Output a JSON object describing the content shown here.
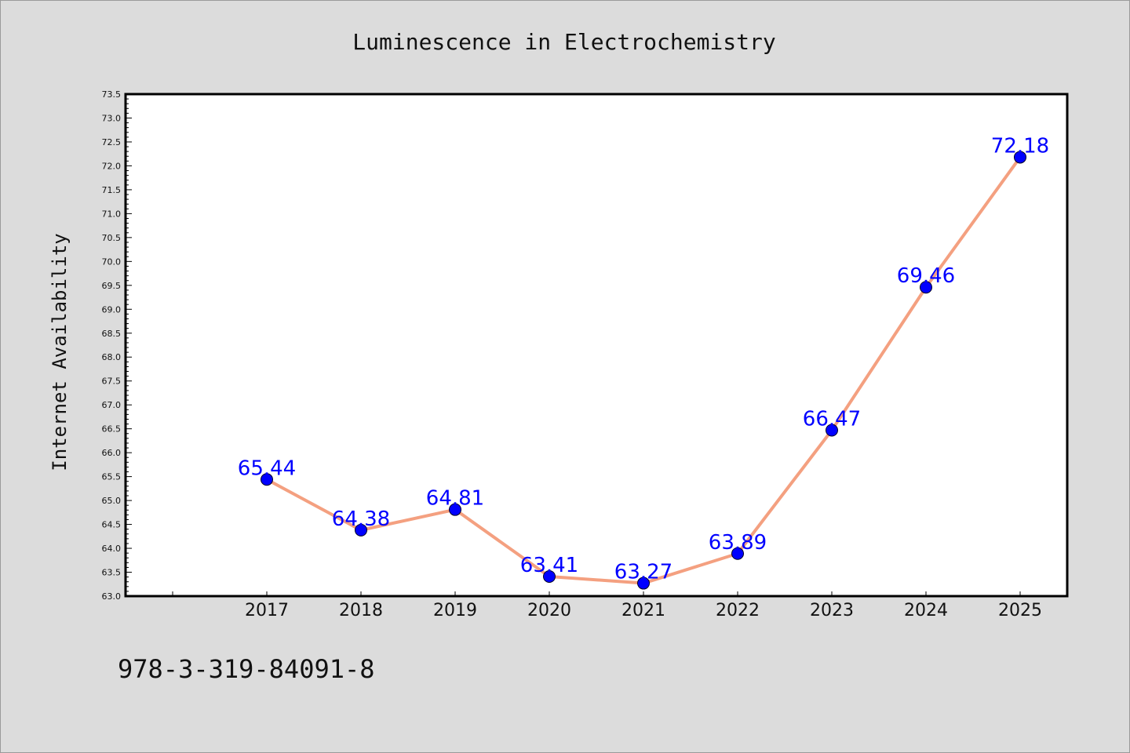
{
  "chart_data": {
    "type": "line",
    "title": "Luminescence in Electrochemistry",
    "xlabel": "",
    "ylabel": "Internet Availability",
    "categories": [
      "2017",
      "2018",
      "2019",
      "2020",
      "2021",
      "2022",
      "2023",
      "2024",
      "2025"
    ],
    "values": [
      65.44,
      64.38,
      64.81,
      63.41,
      63.27,
      63.89,
      66.47,
      69.46,
      72.18
    ],
    "data_labels": [
      "65.44",
      "64.38",
      "64.81",
      "63.41",
      "63.27",
      "63.89",
      "66.47",
      "69.46",
      "72.18"
    ],
    "ylim": [
      63.0,
      73.5
    ],
    "y_major_step": 0.5,
    "grid": false,
    "legend": "none",
    "line_color": "#f4a080",
    "marker_color": "#0000ff",
    "label_color": "#0000ff",
    "plot_background": "#ffffff",
    "page_background": "#dcdcdc"
  },
  "footnote": "978-3-319-84091-8"
}
